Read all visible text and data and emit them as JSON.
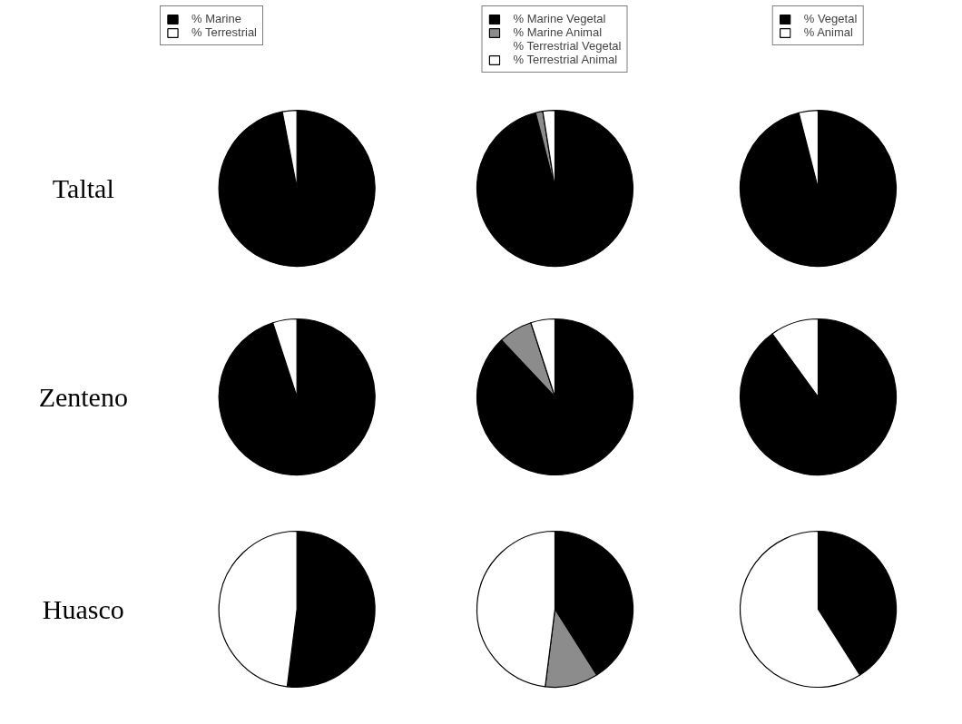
{
  "chart_data": [
    {
      "type": "pie",
      "ylabel": "Taltal",
      "categories": [
        "% Marine",
        "% Terrestrial"
      ],
      "values": [
        97,
        3
      ],
      "colors": [
        "#000000",
        "#ffffff"
      ],
      "legend": "top"
    },
    {
      "type": "pie",
      "categories": [
        "% Marine Vegetal",
        "% Marine Animal",
        "% Terrestrial Vegetal",
        "% Terrestrial Animal"
      ],
      "values": [
        96,
        1.5,
        0,
        2.5
      ],
      "colors": [
        "#000000",
        "#8c8c8c",
        "#d9d9d9",
        "#ffffff"
      ],
      "legend": "top"
    },
    {
      "type": "pie",
      "categories": [
        "% Vegetal",
        "% Animal"
      ],
      "values": [
        96,
        4
      ],
      "colors": [
        "#000000",
        "#ffffff"
      ],
      "legend": "top"
    },
    {
      "type": "pie",
      "ylabel": "Zenteno",
      "values": [
        95,
        5
      ],
      "colors": [
        "#000000",
        "#ffffff"
      ]
    },
    {
      "type": "pie",
      "values": [
        88,
        7,
        0,
        5
      ],
      "colors": [
        "#000000",
        "#8c8c8c",
        "#d9d9d9",
        "#ffffff"
      ]
    },
    {
      "type": "pie",
      "values": [
        90,
        10
      ],
      "colors": [
        "#000000",
        "#ffffff"
      ]
    },
    {
      "type": "pie",
      "ylabel": "Huasco",
      "values": [
        52,
        48
      ],
      "colors": [
        "#000000",
        "#ffffff"
      ]
    },
    {
      "type": "pie",
      "values": [
        41,
        11,
        0,
        48
      ],
      "colors": [
        "#000000",
        "#8c8c8c",
        "#d9d9d9",
        "#ffffff"
      ]
    },
    {
      "type": "pie",
      "values": [
        41,
        59
      ],
      "colors": [
        "#000000",
        "#ffffff"
      ]
    }
  ]
}
